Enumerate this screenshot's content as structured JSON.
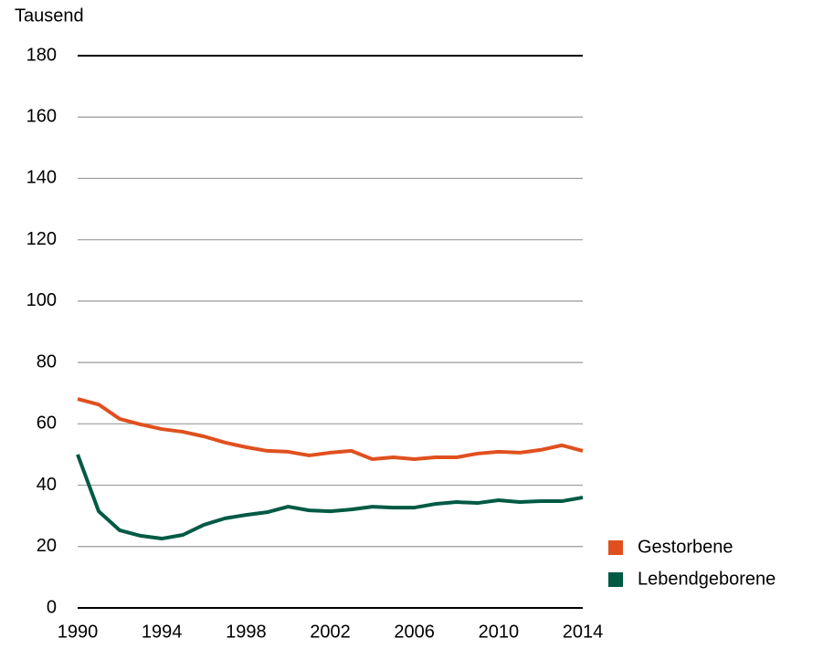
{
  "chart_data": {
    "type": "line",
    "y_label": "Tausend",
    "x": [
      1990,
      1991,
      1992,
      1993,
      1994,
      1995,
      1996,
      1997,
      1998,
      1999,
      2000,
      2001,
      2002,
      2003,
      2004,
      2005,
      2006,
      2007,
      2008,
      2009,
      2010,
      2011,
      2012,
      2013,
      2014
    ],
    "series": [
      {
        "name": "Gestorbene",
        "color": "#e0501f",
        "values": [
          68.1,
          66.3,
          61.6,
          59.8,
          58.3,
          57.4,
          55.9,
          53.9,
          52.4,
          51.2,
          50.9,
          49.7,
          50.6,
          51.2,
          48.5,
          49.1,
          48.5,
          49.1,
          49.1,
          50.3,
          50.9,
          50.6,
          51.5,
          53.0,
          51.2
        ]
      },
      {
        "name": "Lebendgeborene",
        "color": "#005a44",
        "values": [
          50.0,
          31.5,
          25.3,
          23.5,
          22.6,
          23.8,
          27.1,
          29.2,
          30.3,
          31.2,
          33.0,
          31.8,
          31.5,
          32.1,
          33.0,
          32.7,
          32.7,
          33.9,
          34.5,
          34.2,
          35.1,
          34.5,
          34.8,
          34.8,
          36.0
        ]
      }
    ],
    "xlim": [
      1990,
      2014
    ],
    "xticks": [
      1990,
      1994,
      1998,
      2002,
      2006,
      2010,
      2014
    ],
    "ylim": [
      0,
      180
    ],
    "yticks": [
      0,
      20,
      40,
      60,
      80,
      100,
      120,
      140,
      160,
      180
    ],
    "grid": true,
    "legend": "lower right"
  }
}
